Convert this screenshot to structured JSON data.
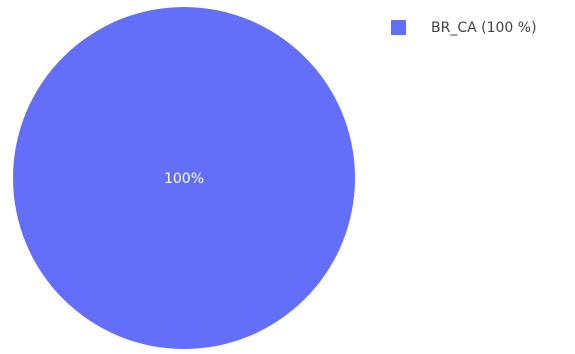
{
  "chart_data": {
    "type": "pie",
    "slices": [
      {
        "label": "BR_CA",
        "value": 100,
        "percent_label": "100%",
        "legend_label": "BR_CA (100 %)",
        "color": "#636efa"
      }
    ],
    "legend_position": "top-right"
  },
  "colors": {
    "background": "#ffffff",
    "slice_text": "#ffffff",
    "legend_text": "#444444"
  }
}
